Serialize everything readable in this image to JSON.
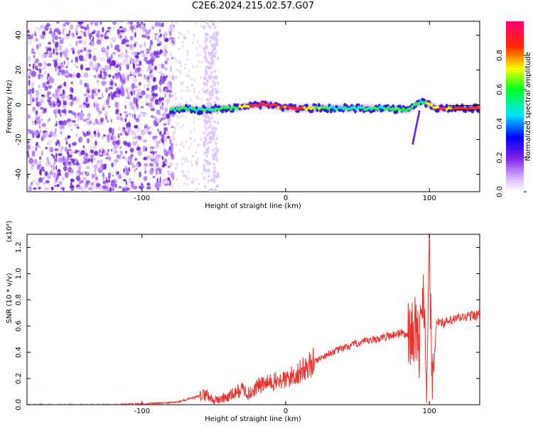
{
  "title": "C2E6.2024.215.02.57.G07",
  "chart_data": [
    {
      "type": "heatmap",
      "title": "C2E6.2024.215.02.57.G07",
      "xlabel": "Height of straight line (km)",
      "ylabel": "Frequency (Hz)",
      "xlim": [
        -180,
        135
      ],
      "ylim": [
        -50,
        48
      ],
      "xticks": [
        -100,
        0,
        100
      ],
      "yticks": [
        -40,
        -20,
        0,
        20,
        40
      ],
      "colorbar": {
        "label": "Normalized spectral amplitude",
        "range": [
          0,
          1
        ],
        "ticks": [
          "0.0",
          "0.2",
          "0.4",
          "0.6",
          "0.8"
        ],
        "colors": [
          "#ffffff",
          "#8a2be2",
          "#0000ff",
          "#00ffff",
          "#00ff00",
          "#ffff00",
          "#ff0000",
          "#ff0066"
        ]
      },
      "noise_region": {
        "x_range": [
          -180,
          -78
        ],
        "y_range": [
          -50,
          48
        ]
      },
      "noise_stripe": {
        "x_range": [
          -57,
          -47
        ]
      },
      "signal_track": [
        {
          "x": -80,
          "y": -3,
          "amp": 0.55
        },
        {
          "x": -70,
          "y": -2,
          "amp": 0.55
        },
        {
          "x": -60,
          "y": -3,
          "amp": 0.5
        },
        {
          "x": -45,
          "y": -2,
          "amp": 0.55
        },
        {
          "x": -35,
          "y": -2,
          "amp": 0.6
        },
        {
          "x": -22,
          "y": 0,
          "amp": 0.9
        },
        {
          "x": -10,
          "y": 0,
          "amp": 0.9
        },
        {
          "x": 0,
          "y": -2,
          "amp": 0.85
        },
        {
          "x": 10,
          "y": -2,
          "amp": 0.9
        },
        {
          "x": 30,
          "y": -2,
          "amp": 0.5
        },
        {
          "x": 50,
          "y": -2,
          "amp": 0.5
        },
        {
          "x": 70,
          "y": -2,
          "amp": 0.55
        },
        {
          "x": 85,
          "y": -3,
          "amp": 0.6
        },
        {
          "x": 95,
          "y": 2,
          "amp": 0.5
        },
        {
          "x": 105,
          "y": -2,
          "amp": 0.85
        },
        {
          "x": 130,
          "y": -2,
          "amp": 0.95
        }
      ]
    },
    {
      "type": "line",
      "xlabel": "Height of straight line (km)",
      "ylabel": "SNR (10 * v/v)",
      "y_multiplier": "(x10⁴)",
      "xlim": [
        -180,
        135
      ],
      "ylim": [
        0,
        1.3
      ],
      "xticks": [
        -100,
        0,
        100
      ],
      "yticks": [
        0.0,
        0.2,
        0.4,
        0.6,
        0.8,
        1.0,
        1.2
      ],
      "color": "#e8312f",
      "series": [
        {
          "x": [
            -180,
            -150,
            -120,
            -90,
            -75,
            -65,
            -55,
            -50,
            -40,
            -30,
            -25,
            -20,
            -10,
            0,
            10,
            20,
            30,
            40,
            50,
            60,
            70,
            80,
            85,
            90,
            93,
            96,
            98,
            100,
            102,
            105,
            110,
            120,
            135
          ],
          "y": [
            0.0,
            0.0,
            0.0,
            0.01,
            0.02,
            0.05,
            0.08,
            0.03,
            0.06,
            0.12,
            0.08,
            0.14,
            0.17,
            0.19,
            0.25,
            0.33,
            0.39,
            0.43,
            0.47,
            0.49,
            0.52,
            0.55,
            0.53,
            0.58,
            0.45,
            0.9,
            0.2,
            1.25,
            0.05,
            0.65,
            0.62,
            0.66,
            0.69
          ]
        }
      ]
    }
  ]
}
